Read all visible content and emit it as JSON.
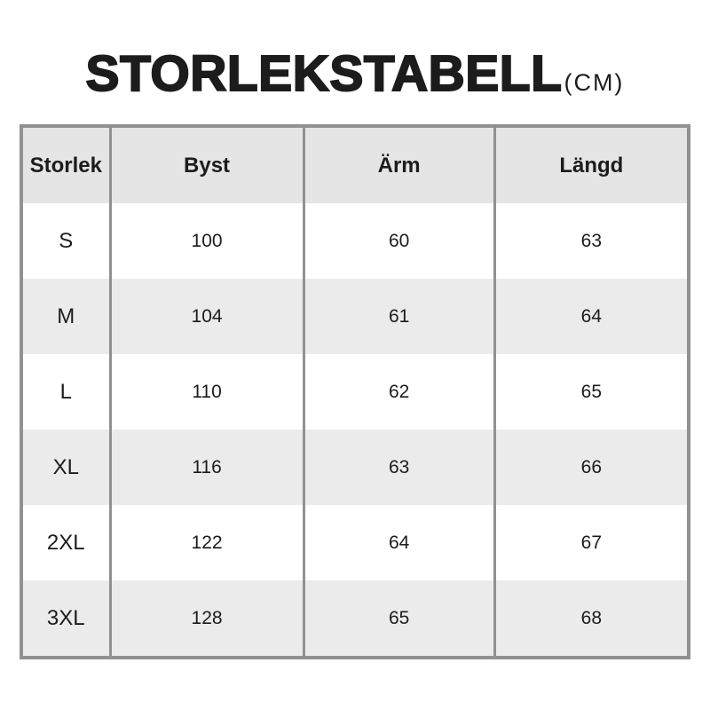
{
  "page": {
    "background": "#ffffff"
  },
  "title": {
    "text": "STORLEKSTABELL",
    "unit": "(CM)"
  },
  "table": {
    "columns": [
      "Storlek",
      "Byst",
      "Ärm",
      "Längd"
    ],
    "rows": [
      [
        "S",
        "100",
        "60",
        "63"
      ],
      [
        "M",
        "104",
        "61",
        "64"
      ],
      [
        "L",
        "110",
        "62",
        "65"
      ],
      [
        "XL",
        "116",
        "63",
        "66"
      ],
      [
        "2XL",
        "122",
        "64",
        "67"
      ],
      [
        "3XL",
        "128",
        "65",
        "68"
      ]
    ]
  },
  "colors": {
    "page_bg": "#ffffff",
    "header_bg": "#e5e5e5",
    "row_bg": "#ffffff",
    "row_alt_bg": "#ebebeb",
    "border": "#919191",
    "text": "#1c1c1c"
  },
  "chart_data": {
    "type": "table",
    "title": "STORLEKSTABELL (CM)",
    "unit": "cm",
    "columns": [
      "Storlek",
      "Byst",
      "Ärm",
      "Längd"
    ],
    "rows": [
      {
        "storlek": "S",
        "byst": 100,
        "arm": 60,
        "langd": 63
      },
      {
        "storlek": "M",
        "byst": 104,
        "arm": 61,
        "langd": 64
      },
      {
        "storlek": "L",
        "byst": 110,
        "arm": 62,
        "langd": 65
      },
      {
        "storlek": "XL",
        "byst": 116,
        "arm": 63,
        "langd": 66
      },
      {
        "storlek": "2XL",
        "byst": 122,
        "arm": 64,
        "langd": 67
      },
      {
        "storlek": "3XL",
        "byst": 128,
        "arm": 65,
        "langd": 68
      }
    ]
  }
}
